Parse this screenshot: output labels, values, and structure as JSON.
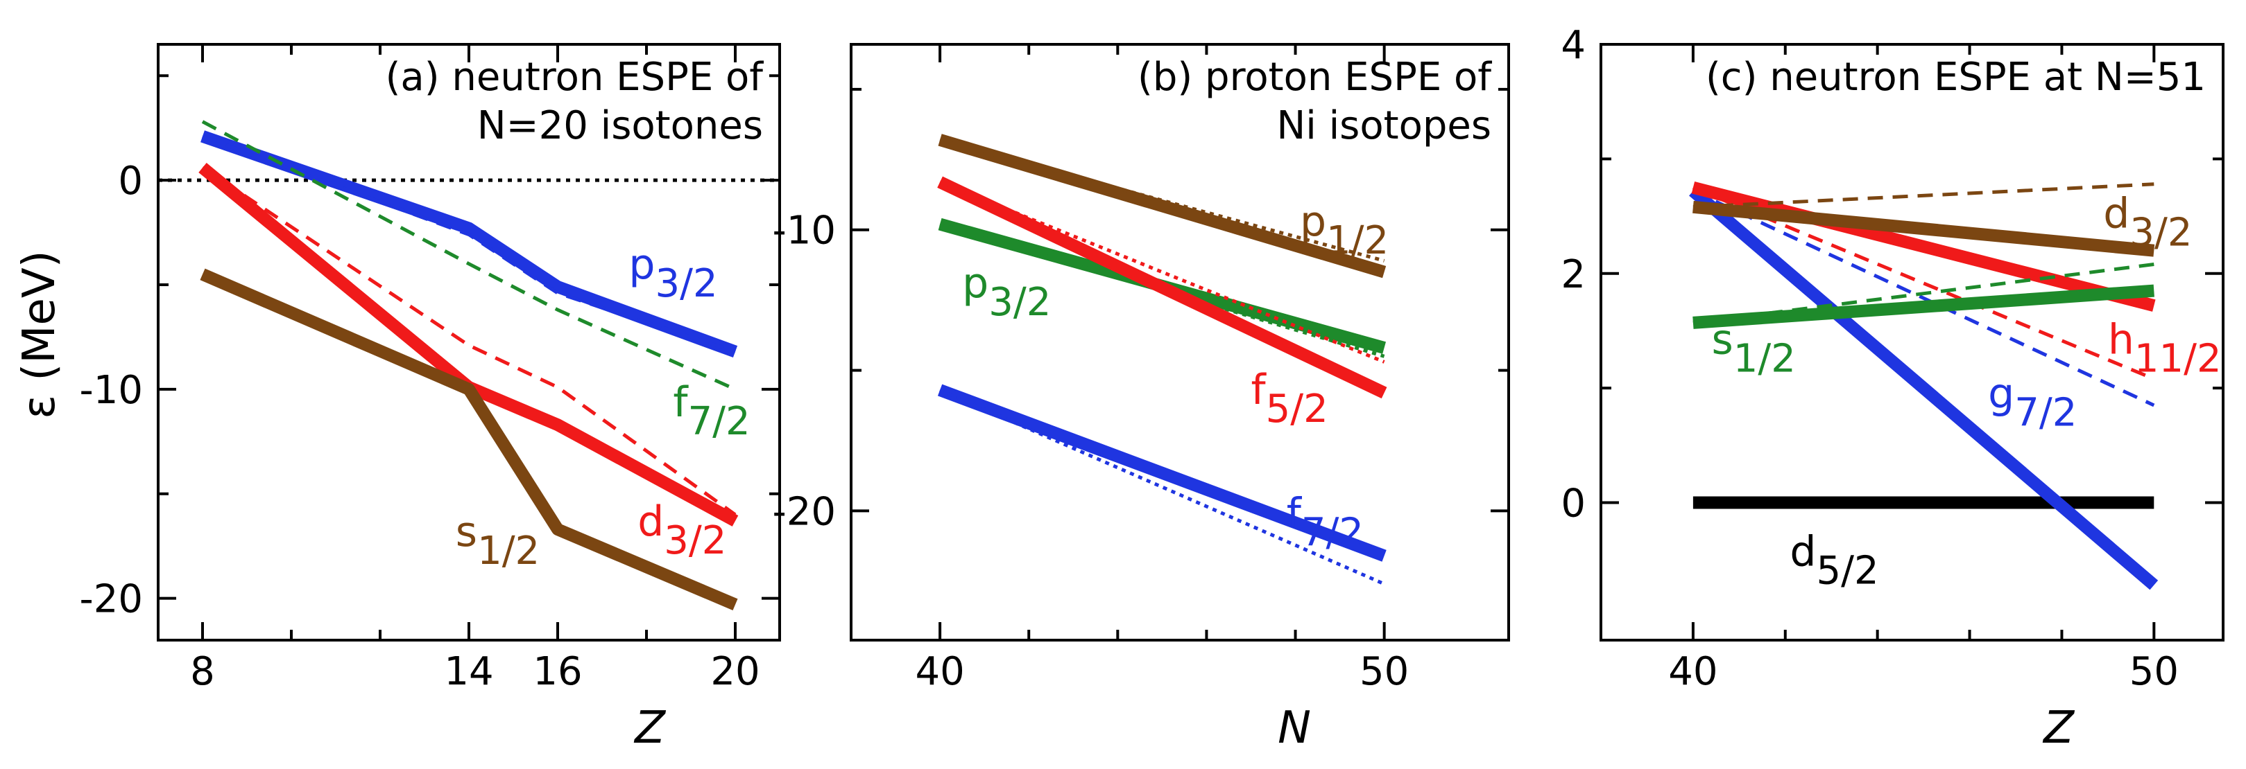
{
  "chart_data": [
    {
      "type": "line",
      "panel": "a",
      "title_lines": [
        "(a) neutron ESPE of",
        "N=20 isotones"
      ],
      "xlabel": "Z",
      "ylabel": "ε (MeV)",
      "xlim": [
        7,
        21
      ],
      "ylim": [
        -22,
        6.5
      ],
      "xticks": [
        8,
        14,
        16,
        20
      ],
      "xtick_labels": [
        "8",
        "14",
        "16",
        "20"
      ],
      "xminor": [
        10,
        12,
        18
      ],
      "yticks": [
        0,
        -10,
        -20
      ],
      "ytick_labels": [
        "0",
        "-10",
        "-20"
      ],
      "yminor": [
        5,
        -5,
        -15
      ],
      "zero_line": true,
      "series": [
        {
          "name": "p3/2",
          "color": "#1f35e0",
          "style": "solid",
          "x": [
            8,
            14,
            16,
            20
          ],
          "y": [
            2.1,
            -2.3,
            -5.1,
            -8.2
          ]
        },
        {
          "name": "p3/2 dashed",
          "color": "#1f35e0",
          "style": "dashed",
          "x": [
            8,
            14,
            16,
            20
          ],
          "y": [
            2.1,
            -2.6,
            -5.4,
            -8.2
          ]
        },
        {
          "name": "f7/2",
          "color": "#1e8a2b",
          "style": "dashed",
          "x": [
            8,
            14,
            16,
            20
          ],
          "y": [
            2.8,
            -4.0,
            -6.2,
            -10.0
          ]
        },
        {
          "name": "d3/2",
          "color": "#f01a1a",
          "style": "solid",
          "x": [
            8,
            14,
            16,
            20
          ],
          "y": [
            0.6,
            -9.9,
            -11.7,
            -16.3
          ]
        },
        {
          "name": "d3/2 dashed",
          "color": "#f01a1a",
          "style": "dashed",
          "x": [
            8,
            14,
            16,
            20
          ],
          "y": [
            0.6,
            -7.9,
            -9.9,
            -16.0
          ]
        },
        {
          "name": "s1/2",
          "color": "#7b4612",
          "style": "solid",
          "x": [
            8,
            14,
            16,
            20
          ],
          "y": [
            -4.5,
            -10.0,
            -16.7,
            -20.3
          ]
        }
      ],
      "labels": [
        {
          "main": "p",
          "sub": "3/2",
          "color": "#1f35e0",
          "x": 17.6,
          "y": -4.7
        },
        {
          "main": "f",
          "sub": "7/2",
          "color": "#1e8a2b",
          "x": 18.6,
          "y": -11.3
        },
        {
          "main": "d",
          "sub": "3/2",
          "color": "#f01a1a",
          "x": 17.8,
          "y": -17.0
        },
        {
          "main": "s",
          "sub": "1/2",
          "color": "#7b4612",
          "x": 13.7,
          "y": -17.5
        }
      ]
    },
    {
      "type": "line",
      "panel": "b",
      "title_lines": [
        "(b) proton ESPE of",
        "Ni isotopes"
      ],
      "xlabel": "N",
      "ylabel": "",
      "xlim": [
        38,
        52.8
      ],
      "ylim": [
        -24.6,
        -3.4
      ],
      "xticks": [
        40,
        50
      ],
      "xtick_labels": [
        "40",
        "50"
      ],
      "xminor": [
        42,
        44,
        46,
        48
      ],
      "yticks": [
        -10,
        -20
      ],
      "ytick_labels": [
        "-10",
        "-20"
      ],
      "yminor": [
        -5,
        -15
      ],
      "zero_line": false,
      "series": [
        {
          "name": "p1/2",
          "color": "#7b4612",
          "style": "solid",
          "x": [
            40,
            50
          ],
          "y": [
            -6.8,
            -11.5
          ]
        },
        {
          "name": "p1/2 dotted",
          "color": "#7b4612",
          "style": "dotted",
          "x": [
            40,
            50
          ],
          "y": [
            -6.8,
            -11.1
          ]
        },
        {
          "name": "p3/2",
          "color": "#1e8a2b",
          "style": "solid",
          "x": [
            40,
            50
          ],
          "y": [
            -9.8,
            -14.2
          ]
        },
        {
          "name": "p3/2 dotted",
          "color": "#1e8a2b",
          "style": "dotted",
          "x": [
            40,
            50
          ],
          "y": [
            -9.8,
            -14.5
          ]
        },
        {
          "name": "f5/2",
          "color": "#f01a1a",
          "style": "solid",
          "x": [
            40,
            50
          ],
          "y": [
            -8.3,
            -15.8
          ]
        },
        {
          "name": "f5/2 dotted",
          "color": "#f01a1a",
          "style": "dotted",
          "x": [
            40,
            50
          ],
          "y": [
            -8.3,
            -14.7
          ]
        },
        {
          "name": "f7/2",
          "color": "#1f35e0",
          "style": "solid",
          "x": [
            40,
            50
          ],
          "y": [
            -15.7,
            -21.6
          ]
        },
        {
          "name": "f7/2 dotted",
          "color": "#1f35e0",
          "style": "dotted",
          "x": [
            40,
            50
          ],
          "y": [
            -15.7,
            -22.6
          ]
        }
      ],
      "labels": [
        {
          "main": "p",
          "sub": "1/2",
          "color": "#7b4612",
          "x": 48.1,
          "y": -10.2
        },
        {
          "main": "p",
          "sub": "3/2",
          "color": "#1e8a2b",
          "x": 40.5,
          "y": -12.4
        },
        {
          "main": "f",
          "sub": "5/2",
          "color": "#f01a1a",
          "x": 47.0,
          "y": -16.2
        },
        {
          "main": "f",
          "sub": "7/2",
          "color": "#1f35e0",
          "x": 47.8,
          "y": -20.6
        }
      ]
    },
    {
      "type": "line",
      "panel": "c",
      "title_lines": [
        "(c) neutron ESPE at N=51"
      ],
      "xlabel": "Z",
      "ylabel": "",
      "xlim": [
        38,
        51.5
      ],
      "ylim": [
        -1.2,
        4.0
      ],
      "xticks": [
        40,
        50
      ],
      "xtick_labels": [
        "40",
        "50"
      ],
      "xminor": [
        42,
        44,
        46,
        48
      ],
      "yticks": [
        0,
        2,
        4
      ],
      "ytick_labels": [
        "0",
        "2",
        "4"
      ],
      "yminor": [
        1,
        3
      ],
      "zero_line": false,
      "series": [
        {
          "name": "d5/2",
          "color": "#000000",
          "style": "solid",
          "x": [
            40,
            50
          ],
          "y": [
            0.0,
            0.0
          ]
        },
        {
          "name": "g7/2",
          "color": "#1f35e0",
          "style": "solid",
          "x": [
            40,
            50
          ],
          "y": [
            2.72,
            -0.72
          ]
        },
        {
          "name": "g7/2 dashed",
          "color": "#1f35e0",
          "style": "dashed",
          "x": [
            40,
            50
          ],
          "y": [
            2.72,
            0.85
          ]
        },
        {
          "name": "h11/2",
          "color": "#f01a1a",
          "style": "solid",
          "x": [
            40,
            50
          ],
          "y": [
            2.75,
            1.72
          ]
        },
        {
          "name": "h11/2 dashed",
          "color": "#f01a1a",
          "style": "dashed",
          "x": [
            40,
            50
          ],
          "y": [
            2.75,
            1.08
          ]
        },
        {
          "name": "d3/2",
          "color": "#7b4612",
          "style": "solid",
          "x": [
            40,
            50
          ],
          "y": [
            2.58,
            2.2
          ]
        },
        {
          "name": "d3/2 dashed",
          "color": "#7b4612",
          "style": "dashed",
          "x": [
            40,
            50
          ],
          "y": [
            2.58,
            2.78
          ]
        },
        {
          "name": "s1/2",
          "color": "#1e8a2b",
          "style": "solid",
          "x": [
            40,
            50
          ],
          "y": [
            1.57,
            1.85
          ]
        },
        {
          "name": "s1/2 dashed",
          "color": "#1e8a2b",
          "style": "dashed",
          "x": [
            40,
            50
          ],
          "y": [
            1.57,
            2.08
          ]
        }
      ],
      "labels": [
        {
          "main": "d",
          "sub": "3/2",
          "color": "#7b4612",
          "x": 48.9,
          "y": 2.4
        },
        {
          "main": "s",
          "sub": "1/2",
          "color": "#1e8a2b",
          "x": 40.4,
          "y": 1.3
        },
        {
          "main": "h",
          "sub": "11/2",
          "color": "#f01a1a",
          "x": 49.0,
          "y": 1.3
        },
        {
          "main": "g",
          "sub": "7/2",
          "color": "#1f35e0",
          "x": 46.4,
          "y": 0.83
        },
        {
          "main": "d",
          "sub": "5/2",
          "color": "#000000",
          "x": 42.1,
          "y": -0.55
        }
      ]
    }
  ]
}
